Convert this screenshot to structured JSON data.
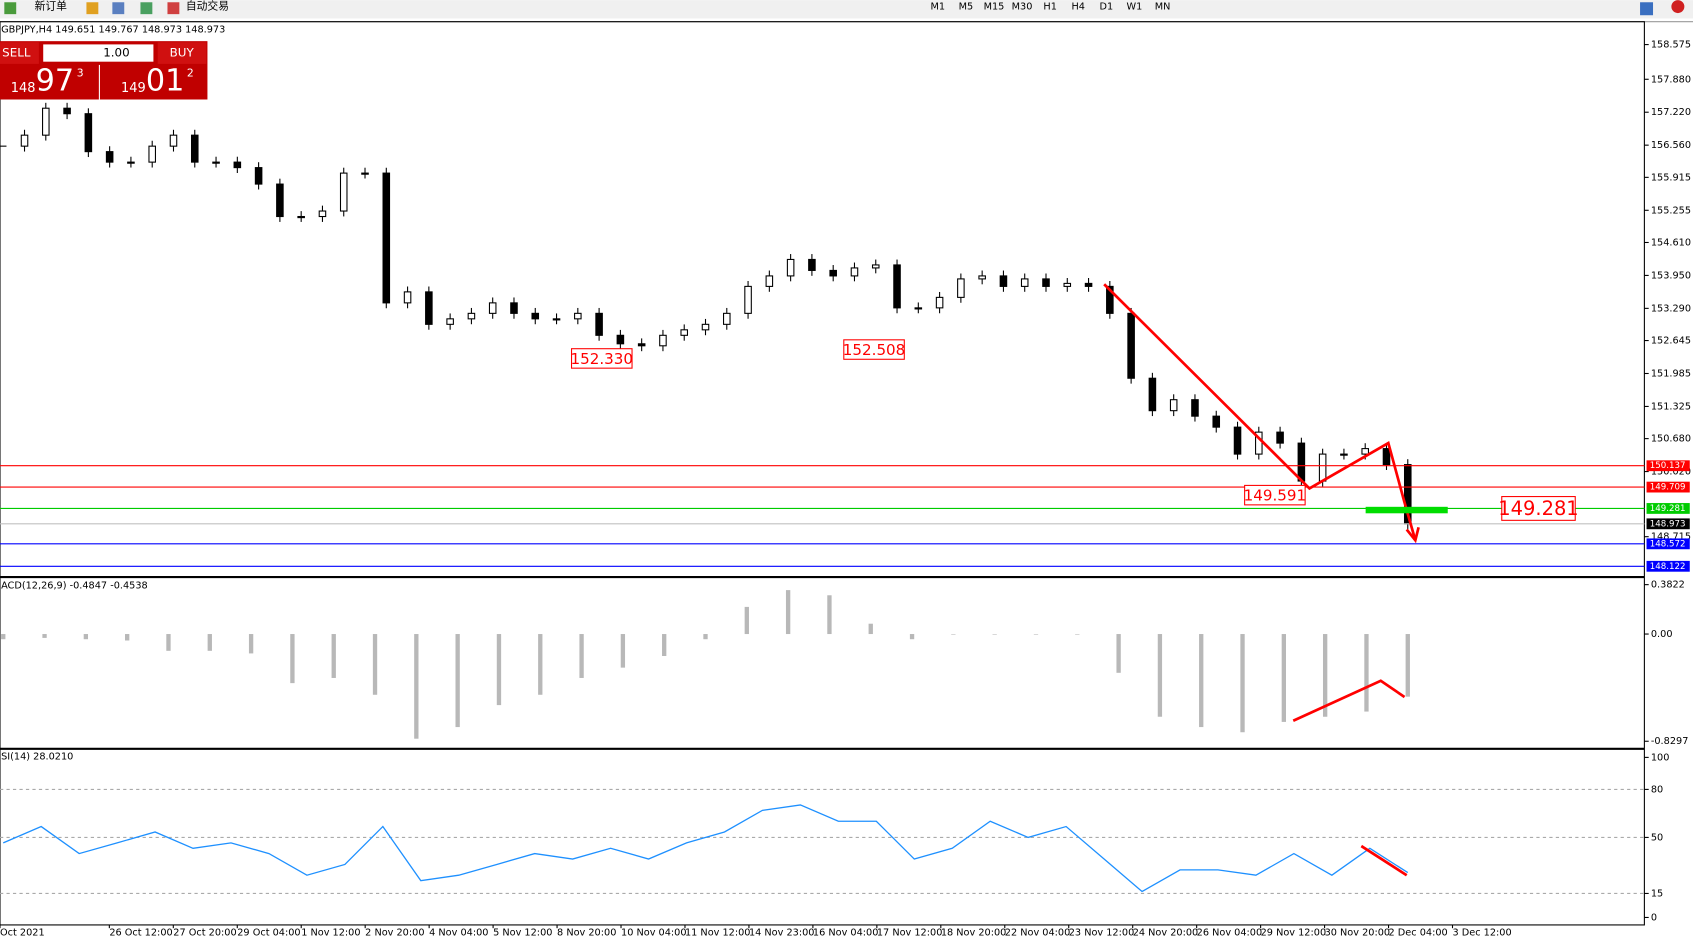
{
  "toolbar": {
    "new_order": "新订单",
    "auto_trading": "自动交易",
    "timeframes": [
      "M1",
      "M5",
      "M15",
      "M30",
      "H1",
      "H4",
      "D1",
      "W1",
      "MN"
    ]
  },
  "one_click": {
    "sell": "SELL",
    "lot": "1.00",
    "buy": "BUY",
    "bid_big": "148",
    "bid_main": "97",
    "bid_sup": "3",
    "ask_big": "149",
    "ask_main": "01",
    "ask_sup": "2"
  },
  "chart_data": [
    {
      "type": "candlestick",
      "header": "GBPJPY,H4  149.651 149.767 148.973 148.973",
      "closes": [
        156.54,
        156.76,
        157.3,
        157.19,
        156.43,
        156.22,
        156.22,
        156.54,
        156.76,
        156.22,
        156.22,
        156.11,
        155.78,
        155.13,
        155.13,
        155.24,
        156.0,
        156.0,
        153.4,
        153.62,
        152.97,
        153.08,
        153.19,
        153.4,
        153.19,
        153.08,
        153.08,
        153.19,
        152.75,
        152.58,
        152.54,
        152.75,
        152.86,
        152.97,
        153.19,
        153.73,
        153.94,
        154.27,
        154.05,
        153.94,
        154.1,
        154.16,
        153.3,
        153.3,
        153.51,
        153.88,
        153.94,
        153.73,
        153.88,
        153.73,
        153.79,
        153.73,
        153.19,
        151.89,
        151.24,
        151.46,
        151.13,
        150.91,
        150.37,
        150.81,
        150.59,
        149.83,
        150.37,
        150.37,
        150.48,
        150.16,
        148.973
      ],
      "ylim": [
        147.95,
        158.99
      ],
      "yticks": [
        158.575,
        {
          "value": 157.88,
          "label": "157.880"
        },
        {
          "value": 157.22,
          "label": "157.220"
        },
        {
          "value": 156.56,
          "label": "156.560"
        },
        155.915,
        155.255,
        {
          "value": 154.61,
          "label": "154.610"
        },
        {
          "value": 153.95,
          "label": "153.950"
        },
        {
          "value": 153.29,
          "label": "153.290"
        },
        152.645,
        151.985,
        151.325,
        {
          "value": 150.68,
          "label": "150.680"
        },
        {
          "value": 150.02,
          "label": "150.020"
        },
        148.715
      ],
      "x_labels": [
        "Oct 2021",
        "26 Oct 12:00",
        "27 Oct 20:00",
        "29 Oct 04:00",
        "1 Nov 12:00",
        "2 Nov 20:00",
        "4 Nov 04:00",
        "5 Nov 12:00",
        "8 Nov 20:00",
        "10 Nov 04:00",
        "11 Nov 12:00",
        "14 Nov 23:00",
        "16 Nov 04:00",
        "17 Nov 12:00",
        "18 Nov 20:00",
        "22 Nov 04:00",
        "23 Nov 12:00",
        "24 Nov 20:00",
        "26 Nov 04:00",
        "29 Nov 12:00",
        "30 Nov 20:00",
        "2 Dec 04:00",
        "3 Dec 12:00"
      ],
      "price_lines": [
        {
          "value": 150.137,
          "label": "150.137",
          "color": "#ff0000"
        },
        {
          "value": 149.709,
          "label": "149.709",
          "color": "#ff0000"
        },
        {
          "value": 149.281,
          "label": "149.281",
          "color": "#00cc00"
        },
        {
          "value": 148.973,
          "label": "148.973",
          "color": "#c0c0c0"
        },
        {
          "value": 148.572,
          "label": "148.572",
          "color": "#0000ff"
        },
        {
          "value": 148.122,
          "label": "148.122",
          "color": "#0000ff"
        }
      ],
      "annotations": [
        {
          "value": 152.33,
          "label": "152.330"
        },
        {
          "value": 152.508,
          "label": "152.508"
        },
        {
          "value": 149.591,
          "label": "149.591"
        },
        {
          "value": 149.281,
          "label": "149.281"
        }
      ]
    },
    {
      "type": "histogram",
      "header": "ACD(12,26,9) -0.4847 -0.4538",
      "values": [
        -0.04,
        -0.03,
        -0.04,
        -0.05,
        -0.13,
        -0.13,
        -0.15,
        -0.38,
        -0.34,
        -0.47,
        -0.81,
        -0.72,
        -0.55,
        -0.47,
        -0.34,
        -0.26,
        -0.17,
        -0.04,
        0.21,
        0.34,
        0.3,
        0.08,
        -0.04,
        0,
        0,
        0,
        0,
        -0.3,
        -0.64,
        -0.72,
        -0.76,
        -0.68,
        -0.64,
        -0.6,
        -0.4847
      ],
      "ylim": [
        -0.88,
        0.416
      ],
      "yticks": [
        0.3822,
        {
          "value": 0,
          "label": "0.00"
        },
        -0.8297
      ]
    },
    {
      "type": "line",
      "header": "SI(14) 28.0210",
      "color": "#1e90ff",
      "values": [
        46.6,
        56.8,
        39.9,
        46.6,
        53.4,
        43.2,
        46.6,
        39.9,
        26.4,
        33.1,
        56.8,
        23.0,
        26.4,
        33.1,
        39.9,
        36.5,
        43.2,
        36.5,
        46.6,
        53.4,
        66.9,
        70.3,
        60.1,
        60.1,
        36.5,
        43.2,
        60.1,
        50.0,
        56.8,
        36.5,
        16.2,
        29.7,
        29.7,
        26.4,
        39.9,
        26.4,
        43.2,
        28.021
      ],
      "ylim": [
        -4,
        104
      ],
      "yticks": [
        100,
        80,
        50,
        15,
        0
      ],
      "levels": [
        80,
        50,
        15
      ]
    }
  ]
}
